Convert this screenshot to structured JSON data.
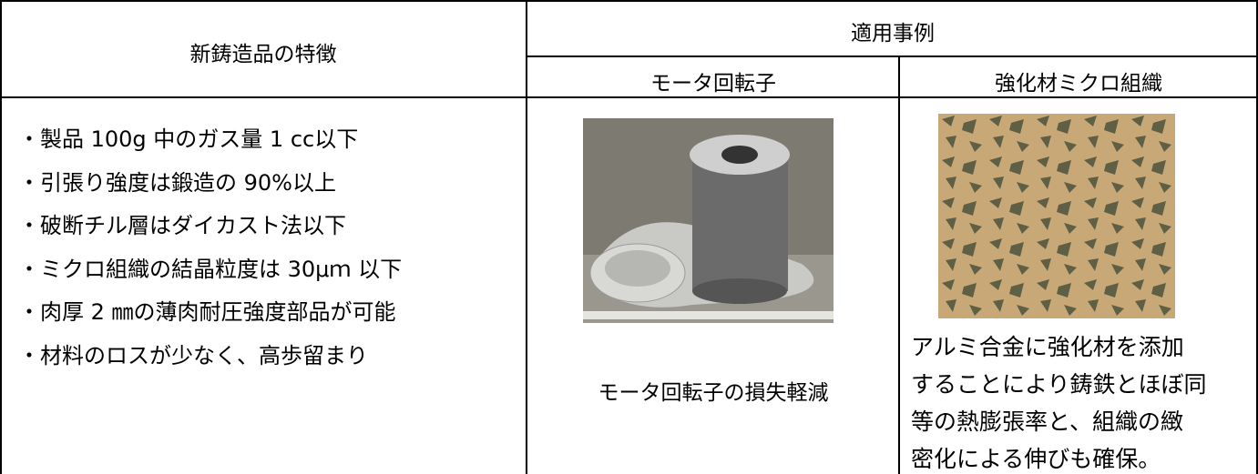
{
  "table": {
    "header": {
      "features": "新鋳造品の特徴",
      "examples": "適用事例",
      "motor": "モータ回転子",
      "micro": "強化材ミクロ組織"
    },
    "features": [
      "・製品 100g 中のガス量 1 cc以下",
      "・引張り強度は鍛造の 90%以上",
      "・破断チル層はダイカスト法以下",
      "・ミクロ組織の結晶粒度は 30μｍ 以下",
      "・肉厚 2 ㎜の薄肉耐圧強度部品が可能",
      "・材料のロスが少なく、高歩留まり"
    ],
    "motor_caption": "モータ回転子の損失軽減",
    "micro_caption": [
      "アルミ合金に強化材を添加",
      "することにより鋳鉄とほぼ同",
      "等の熱膨張率と、組織の緻",
      "密化による伸びも確保。"
    ]
  }
}
